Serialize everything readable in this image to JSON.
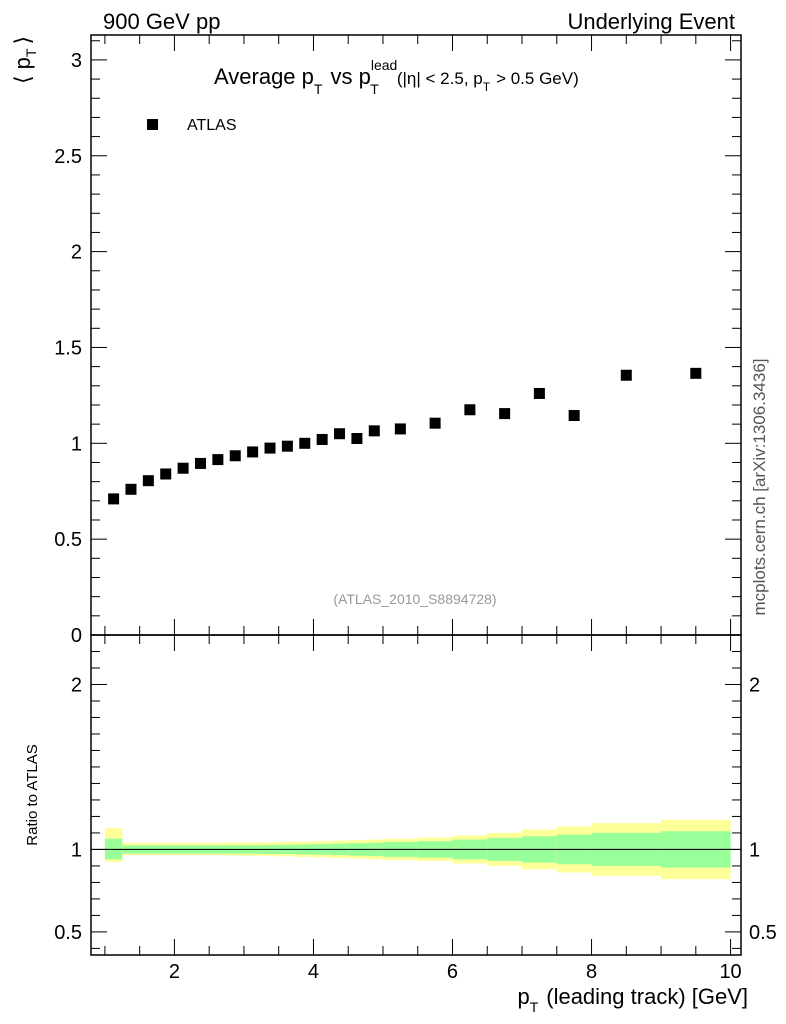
{
  "header": {
    "left": "900 GeV pp",
    "right": "Underlying Event"
  },
  "side_label": "mcplots.cern.ch [arXiv:1306.3436]",
  "chart_data": [
    {
      "type": "scatter",
      "title": {
        "main": "Average p",
        "main_sub": "T",
        "vs": "vs p",
        "vs_sup": "lead",
        "vs_sub": "T",
        "cut_open": "(|η| < 2.5, p",
        "cut_sub": "T",
        "cut_close": "> 0.5 GeV)"
      },
      "ylabel": {
        "open": "⟨ p",
        "sub": "T",
        "close": "⟩"
      },
      "ylim": [
        0,
        3.13
      ],
      "xlim": [
        0.8,
        10.15
      ],
      "y_ticks": [
        {
          "v": 0,
          "label": "0"
        },
        {
          "v": 0.5,
          "label": "0.5"
        },
        {
          "v": 1,
          "label": "1"
        },
        {
          "v": 1.5,
          "label": "1.5"
        },
        {
          "v": 2,
          "label": "2"
        },
        {
          "v": 2.5,
          "label": "2.5"
        },
        {
          "v": 3,
          "label": "3"
        }
      ],
      "legend": {
        "label": "ATLAS",
        "position": "top-left"
      },
      "watermark": "(ATLAS_2010_S8894728)",
      "series": [
        {
          "name": "ATLAS",
          "x": [
            1.125,
            1.375,
            1.625,
            1.875,
            2.125,
            2.375,
            2.625,
            2.875,
            3.125,
            3.375,
            3.625,
            3.875,
            4.125,
            4.375,
            4.625,
            4.875,
            5.25,
            5.75,
            6.25,
            6.75,
            7.25,
            7.75,
            8.5,
            9.5
          ],
          "values": [
            0.71,
            0.76,
            0.805,
            0.84,
            0.87,
            0.895,
            0.915,
            0.935,
            0.955,
            0.975,
            0.985,
            1.0,
            1.02,
            1.05,
            1.025,
            1.065,
            1.075,
            1.105,
            1.175,
            1.155,
            1.26,
            1.145,
            1.355,
            1.365
          ]
        }
      ]
    },
    {
      "type": "area",
      "ylabel": "Ratio to ATLAS",
      "xlabel": {
        "main": "p",
        "sub": "T",
        "rest": "(leading track) [GeV]"
      },
      "xlim": [
        0.8,
        10.15
      ],
      "ylim": [
        0.36,
        2.3
      ],
      "x_ticks": [
        {
          "v": 2,
          "label": "2"
        },
        {
          "v": 4,
          "label": "4"
        },
        {
          "v": 6,
          "label": "6"
        },
        {
          "v": 8,
          "label": "8"
        },
        {
          "v": 10,
          "label": "10"
        }
      ],
      "y_ticks": [
        {
          "v": 0.5,
          "label": "0.5"
        },
        {
          "v": 1,
          "label": "1"
        },
        {
          "v": 2,
          "label": "2"
        }
      ],
      "reference_line": 1,
      "colors": {
        "outer_band": "#ffff99",
        "inner_band": "#99ff99"
      },
      "bins": [
        {
          "x0": 1.0,
          "x1": 1.25,
          "inner": [
            0.94,
            1.065
          ],
          "outer": [
            0.925,
            1.13
          ]
        },
        {
          "x0": 1.25,
          "x1": 1.5,
          "inner": [
            0.975,
            1.025
          ],
          "outer": [
            0.965,
            1.04
          ]
        },
        {
          "x0": 1.5,
          "x1": 1.75,
          "inner": [
            0.975,
            1.025
          ],
          "outer": [
            0.965,
            1.04
          ]
        },
        {
          "x0": 1.75,
          "x1": 2.0,
          "inner": [
            0.975,
            1.025
          ],
          "outer": [
            0.965,
            1.04
          ]
        },
        {
          "x0": 2.0,
          "x1": 2.25,
          "inner": [
            0.975,
            1.025
          ],
          "outer": [
            0.965,
            1.04
          ]
        },
        {
          "x0": 2.25,
          "x1": 2.5,
          "inner": [
            0.975,
            1.025
          ],
          "outer": [
            0.965,
            1.04
          ]
        },
        {
          "x0": 2.5,
          "x1": 2.75,
          "inner": [
            0.975,
            1.025
          ],
          "outer": [
            0.965,
            1.04
          ]
        },
        {
          "x0": 2.75,
          "x1": 3.0,
          "inner": [
            0.975,
            1.025
          ],
          "outer": [
            0.963,
            1.042
          ]
        },
        {
          "x0": 3.0,
          "x1": 3.25,
          "inner": [
            0.975,
            1.025
          ],
          "outer": [
            0.962,
            1.042
          ]
        },
        {
          "x0": 3.25,
          "x1": 3.5,
          "inner": [
            0.973,
            1.027
          ],
          "outer": [
            0.96,
            1.043
          ]
        },
        {
          "x0": 3.5,
          "x1": 3.75,
          "inner": [
            0.972,
            1.028
          ],
          "outer": [
            0.958,
            1.045
          ]
        },
        {
          "x0": 3.75,
          "x1": 4.0,
          "inner": [
            0.97,
            1.03
          ],
          "outer": [
            0.955,
            1.047
          ]
        },
        {
          "x0": 4.0,
          "x1": 4.25,
          "inner": [
            0.968,
            1.032
          ],
          "outer": [
            0.952,
            1.05
          ]
        },
        {
          "x0": 4.25,
          "x1": 4.5,
          "inner": [
            0.965,
            1.035
          ],
          "outer": [
            0.948,
            1.053
          ]
        },
        {
          "x0": 4.5,
          "x1": 4.75,
          "inner": [
            0.962,
            1.038
          ],
          "outer": [
            0.945,
            1.056
          ]
        },
        {
          "x0": 4.75,
          "x1": 5.0,
          "inner": [
            0.96,
            1.04
          ],
          "outer": [
            0.94,
            1.06
          ]
        },
        {
          "x0": 5.0,
          "x1": 5.5,
          "inner": [
            0.955,
            1.045
          ],
          "outer": [
            0.935,
            1.065
          ]
        },
        {
          "x0": 5.5,
          "x1": 6.0,
          "inner": [
            0.95,
            1.05
          ],
          "outer": [
            0.93,
            1.072
          ]
        },
        {
          "x0": 6.0,
          "x1": 6.5,
          "inner": [
            0.94,
            1.06
          ],
          "outer": [
            0.915,
            1.085
          ]
        },
        {
          "x0": 6.5,
          "x1": 7.0,
          "inner": [
            0.93,
            1.07
          ],
          "outer": [
            0.9,
            1.1
          ]
        },
        {
          "x0": 7.0,
          "x1": 7.5,
          "inner": [
            0.92,
            1.08
          ],
          "outer": [
            0.88,
            1.12
          ]
        },
        {
          "x0": 7.5,
          "x1": 8.0,
          "inner": [
            0.91,
            1.09
          ],
          "outer": [
            0.86,
            1.14
          ]
        },
        {
          "x0": 8.0,
          "x1": 9.0,
          "inner": [
            0.9,
            1.1
          ],
          "outer": [
            0.84,
            1.16
          ]
        },
        {
          "x0": 9.0,
          "x1": 10.0,
          "inner": [
            0.89,
            1.11
          ],
          "outer": [
            0.82,
            1.18
          ]
        }
      ]
    }
  ]
}
